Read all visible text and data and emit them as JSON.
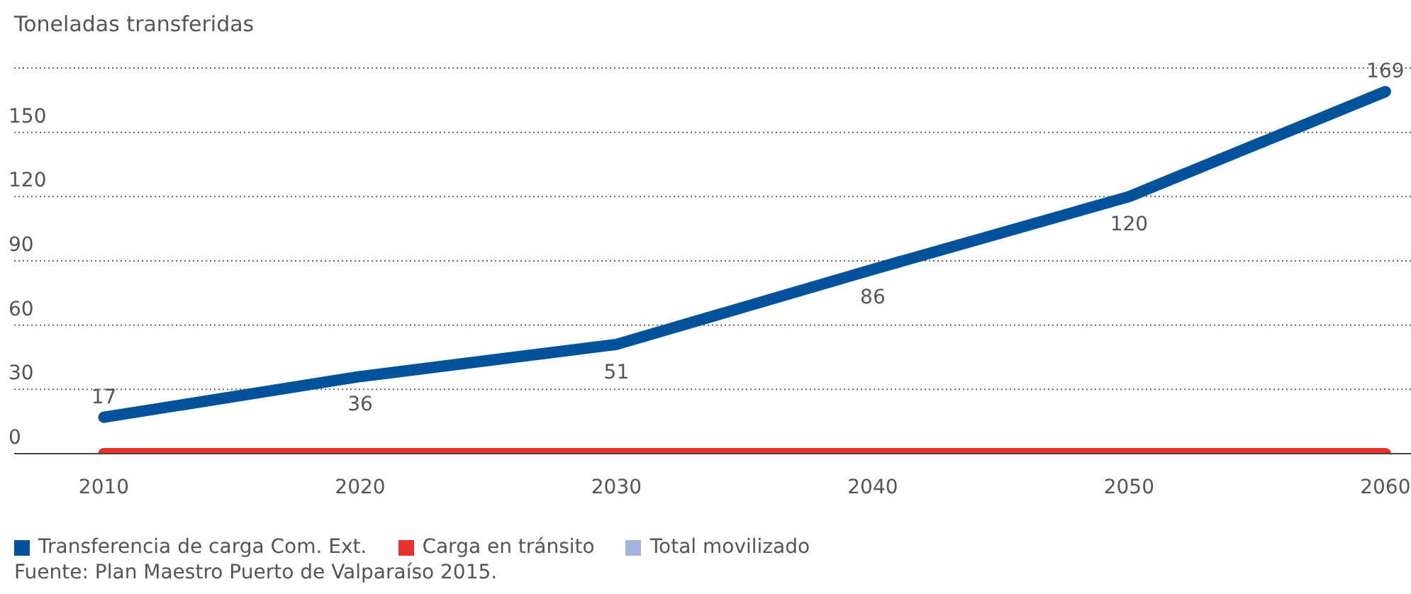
{
  "chart_data": {
    "type": "line",
    "ylabel": "Toneladas transferidas",
    "x": [
      2010,
      2020,
      2030,
      2040,
      2050,
      2060
    ],
    "xlim": [
      2006.5,
      2061
    ],
    "xticks": [
      2010,
      2020,
      2030,
      2040,
      2050,
      2060
    ],
    "ylim": [
      0,
      180
    ],
    "yticks": [
      0,
      30,
      60,
      90,
      120,
      150,
      {
        "value": 180,
        "label": null
      }
    ],
    "grid": "y",
    "legend": "bottom",
    "marker": "none",
    "line_style": "solid",
    "series": [
      {
        "name": "Transferencia de carga Com. Ext.",
        "color": "#00539b",
        "values": [
          17,
          36,
          51,
          86,
          120,
          169
        ],
        "value_labels": [
          "17",
          "36",
          "51",
          "86",
          "120",
          "169"
        ]
      },
      {
        "name": "Carga en tránsito",
        "color": "#e8312a",
        "values": [
          0,
          0,
          0,
          0,
          0,
          0
        ]
      },
      {
        "name": "Total movilizado",
        "color": "#a3b5dc",
        "values": [
          null,
          null,
          null,
          null,
          null,
          null
        ]
      }
    ],
    "annotations": [
      "Fuente: Plan Maestro Puerto de Valparaíso 2015."
    ]
  }
}
